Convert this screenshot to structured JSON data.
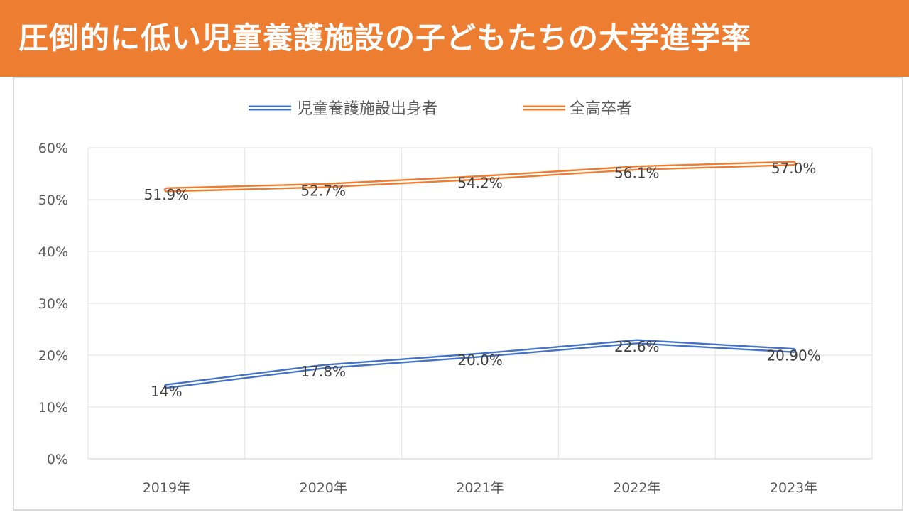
{
  "header": {
    "title": "圧倒的に低い児童養護施設の子どもたちの大学進学率"
  },
  "colors": {
    "header_bg": "#ED7D31",
    "series_blue": "#4472C4",
    "series_orange": "#ED7D31",
    "grid": "#e3e3e3",
    "text": "#595959"
  },
  "chart_data": {
    "type": "line",
    "categories": [
      "2019年",
      "2020年",
      "2021年",
      "2022年",
      "2023年"
    ],
    "series": [
      {
        "name": "児童養護施設出身者",
        "values": [
          14.0,
          17.8,
          20.0,
          22.6,
          20.9
        ],
        "labels": [
          "14%",
          "17.8%",
          "20.0%",
          "22.6%",
          "20.90%"
        ],
        "color": "#4472C4"
      },
      {
        "name": "全高卒者",
        "values": [
          51.9,
          52.7,
          54.2,
          56.1,
          57.0
        ],
        "labels": [
          "51.9%",
          "52.7%",
          "54.2%",
          "56.1%",
          "57.0%"
        ],
        "color": "#ED7D31"
      }
    ],
    "yticks": [
      "0%",
      "10%",
      "20%",
      "30%",
      "40%",
      "50%",
      "60%"
    ],
    "ylim": [
      0,
      60
    ],
    "grid": true,
    "legend": "top-center",
    "title": "",
    "xlabel": "",
    "ylabel": ""
  }
}
